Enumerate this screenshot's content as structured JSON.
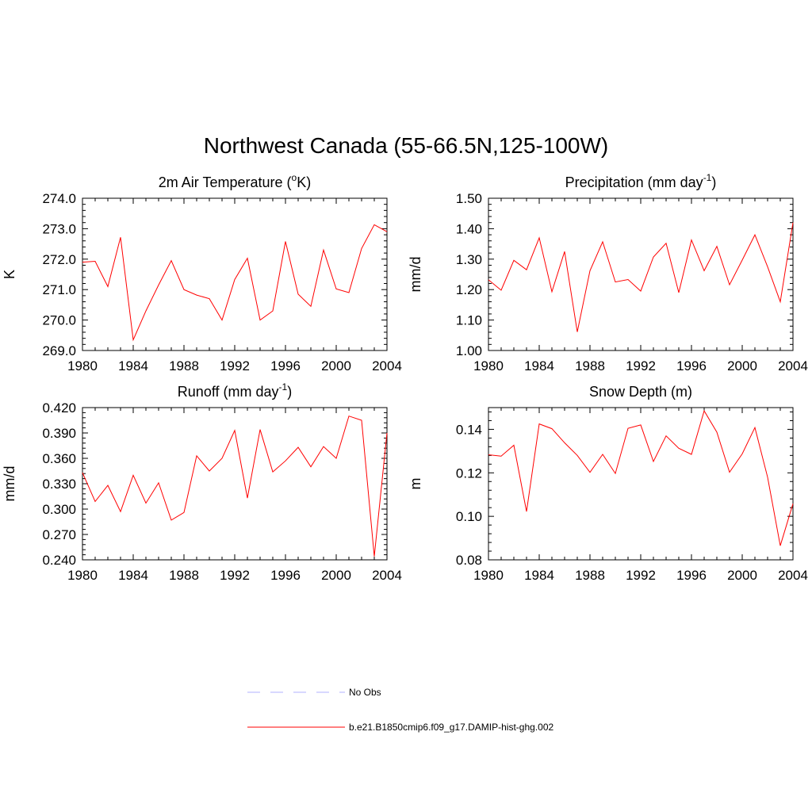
{
  "figure": {
    "title": "Northwest Canada (55-66.5N,125-100W)"
  },
  "legend": [
    {
      "label": "No Obs",
      "color": "#b0b0ff",
      "dash": true
    },
    {
      "label": "b.e21.B1850cmip6.f09_g17.DAMIP-hist-ghg.002",
      "color": "#ff0000",
      "dash": false
    }
  ],
  "chart_data": [
    {
      "type": "line",
      "title": "2m Air Temperature (",
      "title_super": "o",
      "title_after": "K)",
      "ylabel": "K",
      "xlabel": "",
      "xlim": [
        1980,
        2004
      ],
      "ylim": [
        269.0,
        274.0
      ],
      "xticks": [
        "1980",
        "1984",
        "1988",
        "1992",
        "1996",
        "2000",
        "2004"
      ],
      "yticks": [
        "269.0",
        "270.0",
        "271.0",
        "272.0",
        "273.0",
        "274.0"
      ],
      "x": [
        1980,
        1981,
        1982,
        1983,
        1984,
        1985,
        1986,
        1987,
        1988,
        1989,
        1990,
        1991,
        1992,
        1993,
        1994,
        1995,
        1996,
        1997,
        1998,
        1999,
        2000,
        2001,
        2002,
        2003,
        2004
      ],
      "series": [
        {
          "color": "#ff0000",
          "values": [
            271.9,
            271.93,
            271.1,
            272.72,
            269.35,
            270.3,
            271.15,
            271.95,
            271.0,
            270.82,
            270.7,
            270.0,
            271.33,
            272.03,
            270.0,
            270.3,
            272.58,
            270.85,
            270.45,
            272.3,
            271.02,
            270.9,
            272.35,
            273.13,
            272.9
          ]
        }
      ]
    },
    {
      "type": "line",
      "title": "Precipitation (mm day",
      "title_super": "-1",
      "title_after": ")",
      "ylabel": "mm/d",
      "xlabel": "",
      "xlim": [
        1980,
        2004
      ],
      "ylim": [
        1.0,
        1.5
      ],
      "xticks": [
        "1980",
        "1984",
        "1988",
        "1992",
        "1996",
        "2000",
        "2004"
      ],
      "yticks": [
        "1.00",
        "1.10",
        "1.20",
        "1.30",
        "1.40",
        "1.50"
      ],
      "x": [
        1980,
        1981,
        1982,
        1983,
        1984,
        1985,
        1986,
        1987,
        1988,
        1989,
        1990,
        1991,
        1992,
        1993,
        1994,
        1995,
        1996,
        1997,
        1998,
        1999,
        2000,
        2001,
        2002,
        2003,
        2004
      ],
      "series": [
        {
          "color": "#ff0000",
          "values": [
            1.232,
            1.198,
            1.296,
            1.265,
            1.37,
            1.193,
            1.325,
            1.061,
            1.262,
            1.357,
            1.225,
            1.233,
            1.195,
            1.307,
            1.352,
            1.19,
            1.363,
            1.262,
            1.342,
            1.216,
            1.297,
            1.38,
            1.275,
            1.16,
            1.42
          ]
        }
      ]
    },
    {
      "type": "line",
      "title": "Runoff (mm day",
      "title_super": "-1",
      "title_after": ")",
      "ylabel": "mm/d",
      "xlabel": "",
      "xlim": [
        1980,
        2004
      ],
      "ylim": [
        0.24,
        0.42
      ],
      "xticks": [
        "1980",
        "1984",
        "1988",
        "1992",
        "1996",
        "2000",
        "2004"
      ],
      "yticks": [
        "0.240",
        "0.270",
        "0.300",
        "0.330",
        "0.360",
        "0.390",
        "0.420"
      ],
      "x": [
        1980,
        1981,
        1982,
        1983,
        1984,
        1985,
        1986,
        1987,
        1988,
        1989,
        1990,
        1991,
        1992,
        1993,
        1994,
        1995,
        1996,
        1997,
        1998,
        1999,
        2000,
        2001,
        2002,
        2003,
        2004
      ],
      "series": [
        {
          "color": "#ff0000",
          "values": [
            0.343,
            0.309,
            0.328,
            0.297,
            0.34,
            0.307,
            0.331,
            0.287,
            0.296,
            0.363,
            0.345,
            0.36,
            0.393,
            0.313,
            0.394,
            0.344,
            0.357,
            0.373,
            0.35,
            0.374,
            0.36,
            0.41,
            0.405,
            0.244,
            0.39
          ]
        }
      ]
    },
    {
      "type": "line",
      "title": "Snow Depth (m)",
      "title_super": "",
      "title_after": "",
      "ylabel": "m",
      "xlabel": "",
      "xlim": [
        1980,
        2004
      ],
      "ylim": [
        0.08,
        0.15
      ],
      "xticks": [
        "1980",
        "1984",
        "1988",
        "1992",
        "1996",
        "2000",
        "2004"
      ],
      "yticks": [
        "0.08",
        "0.10",
        "0.12",
        "0.14"
      ],
      "ytick_values": [
        0.08,
        0.1,
        0.12,
        0.14
      ],
      "x": [
        1980,
        1981,
        1982,
        1983,
        1984,
        1985,
        1986,
        1987,
        1988,
        1989,
        1990,
        1991,
        1992,
        1993,
        1994,
        1995,
        1996,
        1997,
        1998,
        1999,
        2000,
        2001,
        2002,
        2003,
        2004
      ],
      "series": [
        {
          "color": "#ff0000",
          "values": [
            0.1283,
            0.1277,
            0.1327,
            0.1022,
            0.1425,
            0.1403,
            0.1338,
            0.128,
            0.1202,
            0.1285,
            0.1197,
            0.1405,
            0.142,
            0.1252,
            0.137,
            0.1313,
            0.1285,
            0.1485,
            0.1387,
            0.1203,
            0.1287,
            0.1408,
            0.118,
            0.0865,
            0.1058
          ]
        }
      ]
    }
  ]
}
